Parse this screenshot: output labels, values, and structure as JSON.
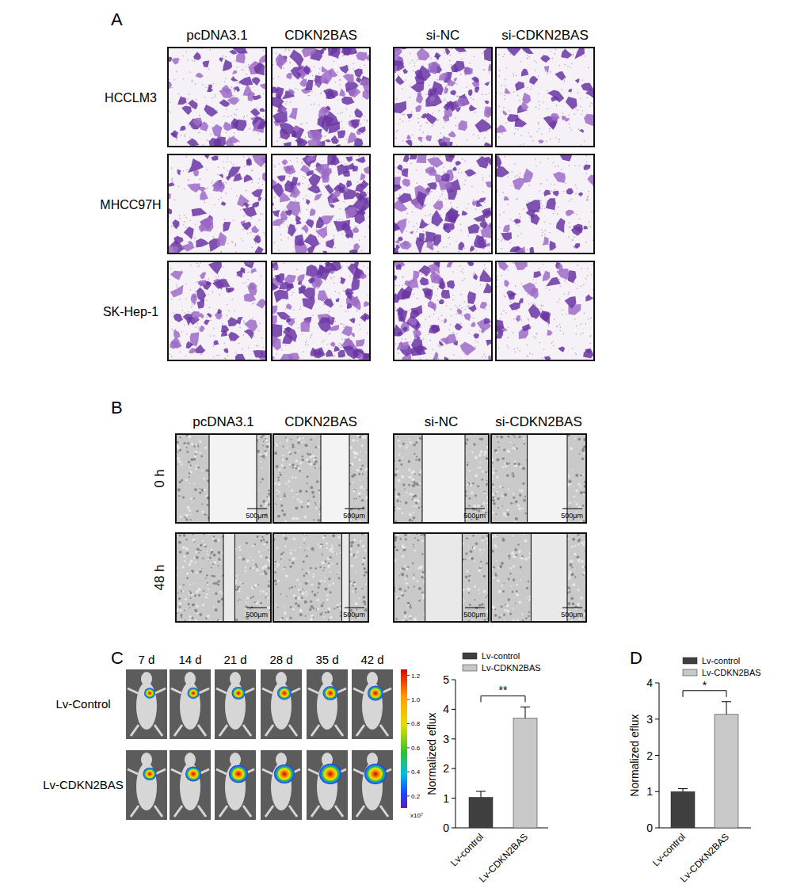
{
  "panels": {
    "A": {
      "label": "A",
      "columns": [
        "pcDNA3.1",
        "CDKN2BAS",
        "si-NC",
        "si-CDKN2BAS"
      ],
      "rows": [
        "HCCLM3",
        "MHCC97H",
        "SK-Hep-1"
      ]
    },
    "B": {
      "label": "B",
      "columns": [
        "pcDNA3.1",
        "CDKN2BAS",
        "si-NC",
        "si-CDKN2BAS"
      ],
      "rows": [
        "0 h",
        "48 h"
      ],
      "scale_bar": "500μm"
    },
    "C": {
      "label": "C",
      "timepoints": [
        "7 d",
        "14 d",
        "21 d",
        "28 d",
        "35 d",
        "42 d"
      ],
      "rows": [
        "Lv-Control",
        "Lv-CDKN2BAS"
      ],
      "colorbar": {
        "range": [
          0.1,
          1.25
        ],
        "ticks": [
          0.2,
          0.4,
          0.6,
          0.8,
          {
            "value": 1,
            "label": "1.0"
          },
          1.2
        ],
        "unit_label": "x10⁷"
      }
    },
    "D": {
      "label": "D"
    }
  },
  "chart_data": [
    {
      "type": "bar",
      "categories": [
        "Lv-control",
        "Lv-CDKN2BAS"
      ],
      "values": [
        1.03,
        3.7
      ],
      "errors": [
        0.2,
        0.38
      ],
      "colors": [
        "#3f3f3f",
        "#c8c8c8"
      ],
      "y_label": "Normalized eflux",
      "ylim": [
        0,
        5
      ],
      "yticks": [
        0,
        1,
        2,
        3,
        4,
        5
      ],
      "legend": "top",
      "significance": "**"
    },
    {
      "type": "bar",
      "categories": [
        "Lv-control",
        "Lv-CDKN2BAS"
      ],
      "values": [
        1.0,
        3.13
      ],
      "errors": [
        0.08,
        0.35
      ],
      "colors": [
        "#3f3f3f",
        "#c8c8c8"
      ],
      "y_label": "Normalized eflux",
      "ylim": [
        0,
        4
      ],
      "yticks": [
        0,
        1,
        2,
        3,
        4
      ],
      "legend": "top",
      "significance": "*"
    }
  ]
}
